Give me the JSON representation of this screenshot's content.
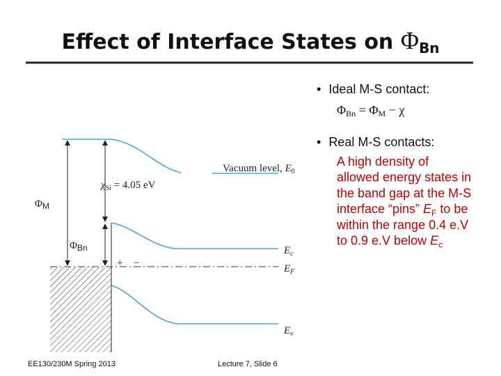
{
  "title": {
    "text": "Effect of Interface States on ",
    "symbol": "Φ",
    "subscript": "Bn"
  },
  "bullets": [
    {
      "text": "Ideal M-S contact:",
      "formula": {
        "lhs": "Φ",
        "lhs_sub": "Bn",
        "op": " = Φ",
        "rhs_sub": "M",
        "tail": " − χ"
      }
    },
    {
      "text": "Real M-S contacts:",
      "lines": [
        {
          "text": "A high density of"
        },
        {
          "text": "allowed energy states in"
        },
        {
          "text": "the band gap at the M-S"
        },
        {
          "text": "interface “pins” ",
          "symbol": "E",
          "subscript": "F",
          "after": " to be"
        },
        {
          "text": "within the range 0.4 e.V"
        },
        {
          "text": "to 0.9 e.V below ",
          "symbol": "E",
          "subscript": "c"
        }
      ]
    }
  ],
  "diagram": {
    "vacuum": {
      "text": "Vacuum level, ",
      "symbol": "E",
      "subscript": "0"
    },
    "chi": {
      "symbol": "χ",
      "subscript": "Si",
      "text": " = 4.05 eV"
    },
    "phi_m": {
      "symbol": "Φ",
      "subscript": "M"
    },
    "phi_bn": {
      "symbol": "Φ",
      "subscript": "Bn"
    },
    "ec": {
      "symbol": "E",
      "subscript": "c"
    },
    "ef": {
      "symbol": "E",
      "subscript": "F"
    },
    "ev": {
      "symbol": "E",
      "subscript": "v"
    },
    "plus": "+",
    "minus": "−"
  },
  "footer": {
    "left": "EE130/230M Spring 2013",
    "center": "Lecture 7, Slide 6"
  }
}
